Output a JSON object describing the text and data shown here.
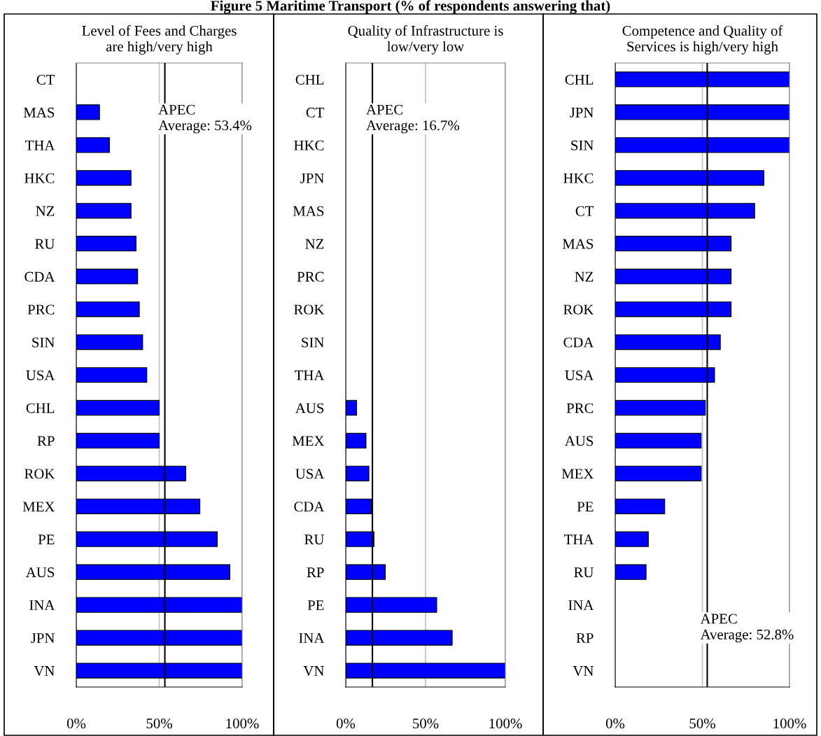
{
  "chart_data": [
    {
      "type": "bar",
      "orientation": "horizontal",
      "title": "Level of Fees and Charges\nare high/very high",
      "categories": [
        "CT",
        "MAS",
        "THA",
        "HKC",
        "NZ",
        "RU",
        "CDA",
        "PRC",
        "SIN",
        "USA",
        "CHL",
        "RP",
        "ROK",
        "MEX",
        "PE",
        "AUS",
        "INA",
        "JPN",
        "VN"
      ],
      "values": [
        0,
        14,
        20,
        33,
        33,
        36,
        37,
        38,
        40,
        42.5,
        50,
        50,
        66,
        74.5,
        85,
        92.6,
        100,
        100,
        100
      ],
      "color": "#0000ff",
      "xlim": [
        0,
        100
      ],
      "xticks": [
        {
          "value": 0,
          "label": "0%"
        },
        {
          "value": 50,
          "label": "50%"
        },
        {
          "value": 100,
          "label": "100%"
        }
      ],
      "grid": "x",
      "ref_lines": [
        {
          "axis": "x",
          "value": 53.4,
          "label": "APEC\nAverage: 53.4%",
          "color": "#000000"
        }
      ]
    },
    {
      "type": "bar",
      "orientation": "horizontal",
      "title": "Quality of Infrastructure is\nlow/very low",
      "categories": [
        "CHL",
        "CT",
        "HKC",
        "JPN",
        "MAS",
        "NZ",
        "PRC",
        "ROK",
        "SIN",
        "THA",
        "AUS",
        "MEX",
        "USA",
        "CDA",
        "RU",
        "RP",
        "PE",
        "INA",
        "VN"
      ],
      "values": [
        0,
        0,
        0,
        0,
        0,
        0,
        0,
        0,
        0,
        0,
        6.8,
        12.7,
        14.5,
        16,
        17.7,
        24.8,
        57,
        66.7,
        100
      ],
      "color": "#0000ff",
      "xlim": [
        0,
        100
      ],
      "xticks": [
        {
          "value": 0,
          "label": "0%"
        },
        {
          "value": 50,
          "label": "50%"
        },
        {
          "value": 100,
          "label": "100%"
        }
      ],
      "grid": "x",
      "ref_lines": [
        {
          "axis": "x",
          "value": 16.7,
          "label": "APEC\nAverage: 16.7%",
          "color": "#000000"
        }
      ]
    },
    {
      "type": "bar",
      "orientation": "horizontal",
      "title": "Competence and Quality of\nServices is high/very high",
      "categories": [
        "CHL",
        "JPN",
        "SIN",
        "HKC",
        "CT",
        "MAS",
        "NZ",
        "ROK",
        "CDA",
        "USA",
        "PRC",
        "AUS",
        "MEX",
        "PE",
        "THA",
        "RU",
        "INA",
        "RP",
        "VN"
      ],
      "values": [
        100,
        100,
        100,
        85.3,
        80,
        66.5,
        66.5,
        66.5,
        60.3,
        57,
        51.7,
        49.3,
        49.3,
        28.4,
        19,
        17.7,
        0,
        0,
        0
      ],
      "color": "#0000ff",
      "xlim": [
        0,
        100
      ],
      "xticks": [
        {
          "value": 0,
          "label": "0%"
        },
        {
          "value": 50,
          "label": "50%"
        },
        {
          "value": 100,
          "label": "100%"
        }
      ],
      "grid": "x",
      "ref_lines": [
        {
          "axis": "x",
          "value": 52.8,
          "label": "APEC\nAverage: 52.8%",
          "color": "#000000"
        }
      ],
      "annotations": [
        "Figure 5 Maritime Transport (% of respondents answering that)"
      ]
    }
  ]
}
